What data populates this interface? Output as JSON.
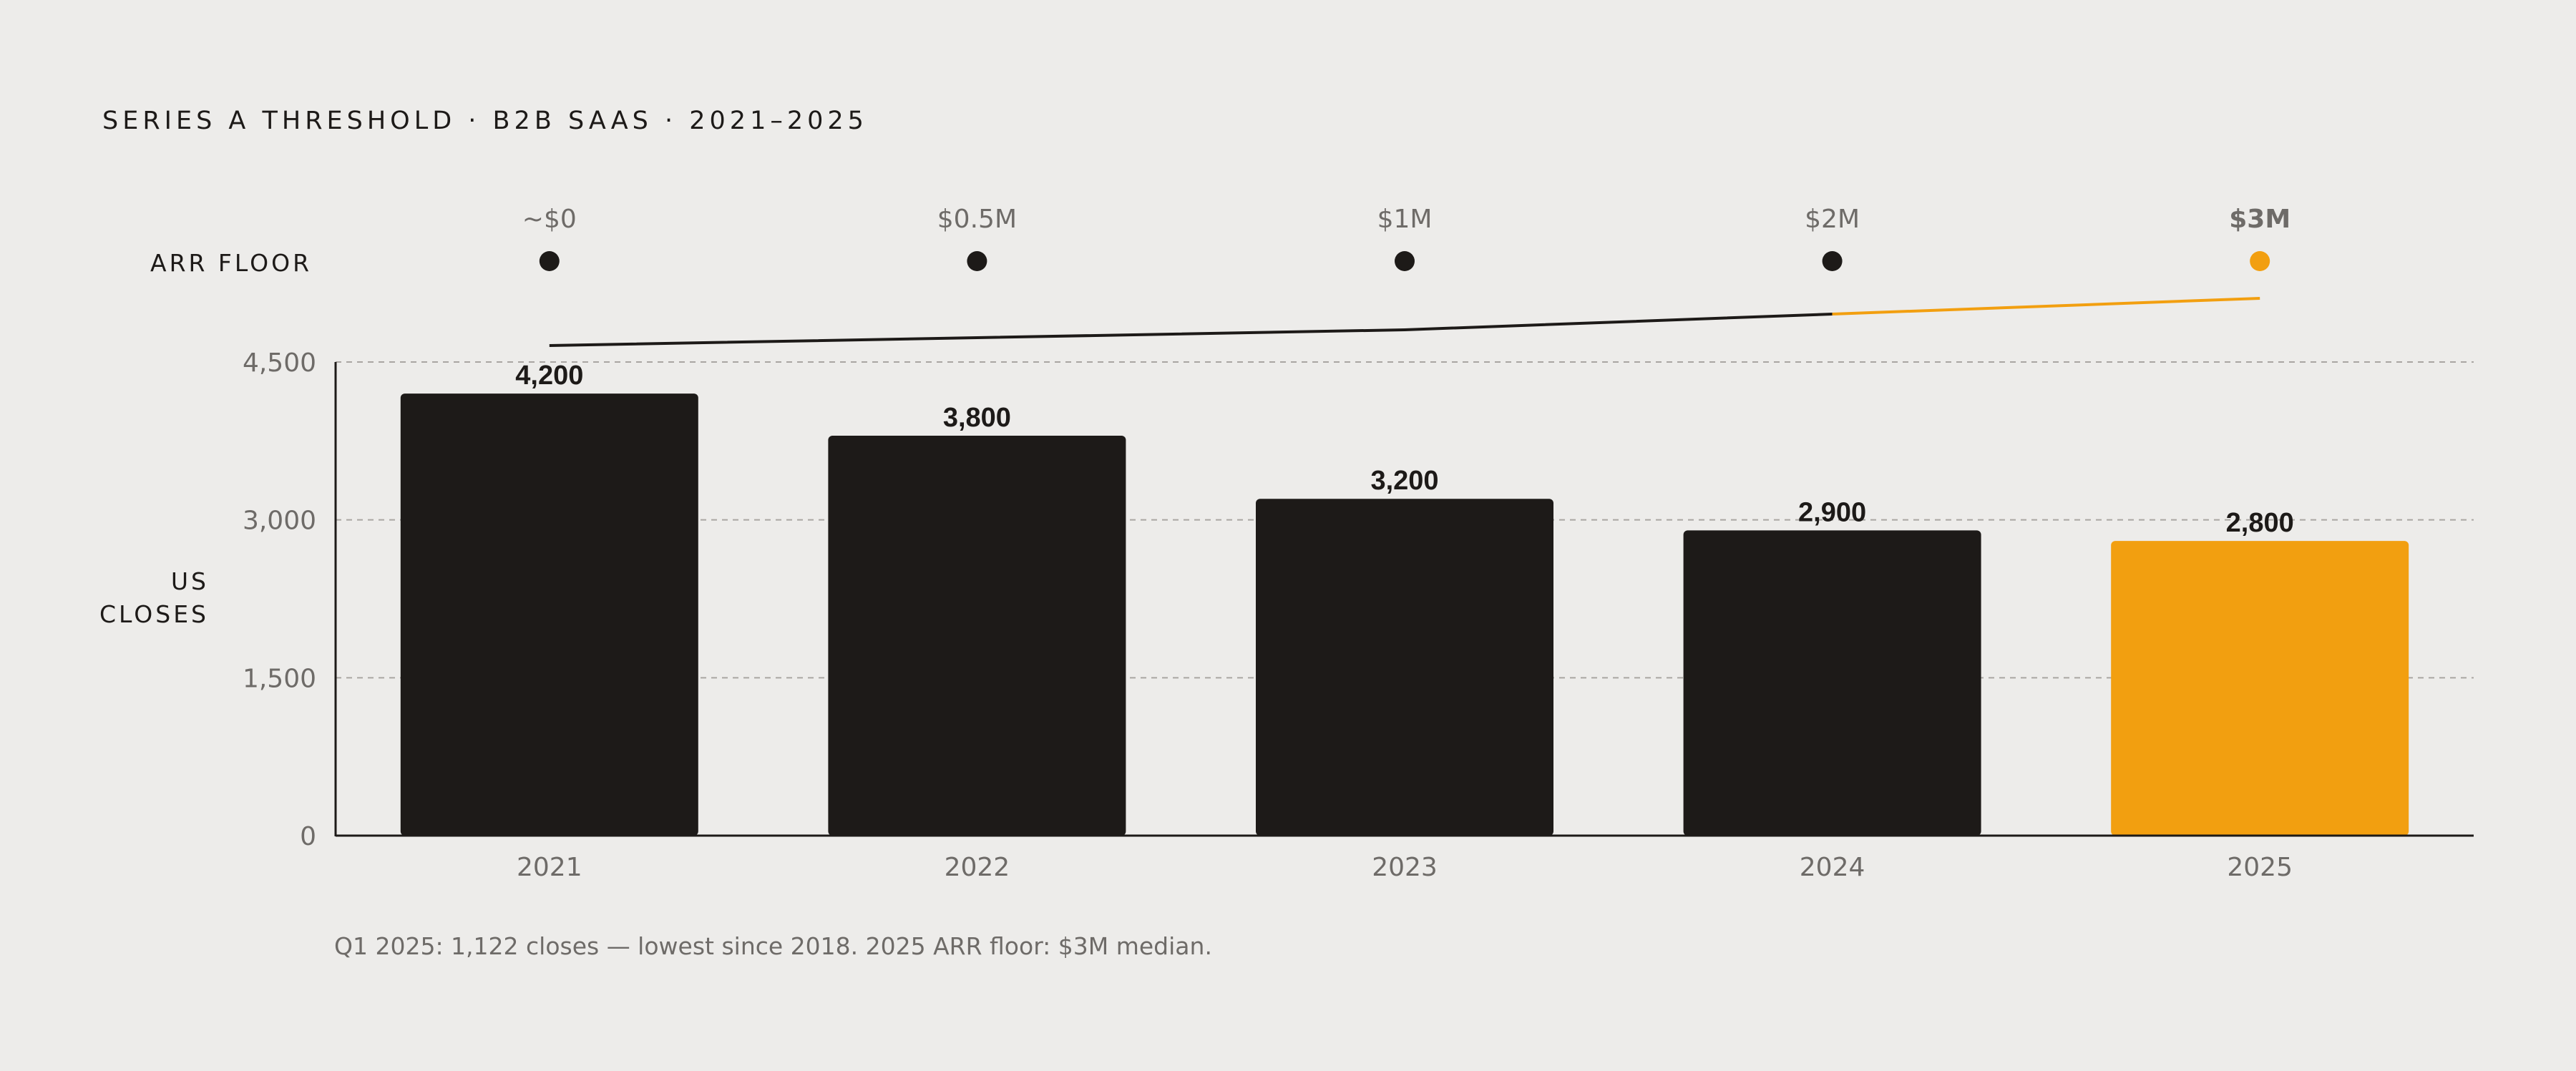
{
  "title": "SERIES A THRESHOLD · B2B SAAS · 2021–2025",
  "colors": {
    "background": "#EDECEA",
    "bar": "#1D1A18",
    "accent": "#F29F10",
    "muted_text": "#6E6B68"
  },
  "arr_floor": {
    "label": "ARR FLOOR",
    "milestones": [
      "~$0",
      "$0.5M",
      "$1M",
      "$2M",
      "$3M"
    ],
    "values_musd": [
      0,
      0.5,
      1,
      2,
      3
    ],
    "highlight_index": 4
  },
  "chart_data": {
    "type": "bar",
    "categories": [
      "2021",
      "2022",
      "2023",
      "2024",
      "2025"
    ],
    "values": [
      4200,
      3800,
      3200,
      2900,
      2800
    ],
    "value_labels": [
      "4,200",
      "3,800",
      "3,200",
      "2,900",
      "2,800"
    ],
    "title": "SERIES A THRESHOLD · B2B SAAS · 2021–2025",
    "ylabel": "US CLOSES",
    "ylabel_lines": [
      "US",
      "CLOSES"
    ],
    "xlabel": "",
    "ylim": [
      0,
      4500
    ],
    "yticks": [
      0,
      1500,
      3000,
      4500
    ],
    "ytick_labels": [
      "0",
      "1,500",
      "3,000",
      "4,500"
    ],
    "grid": "horizontal dashed",
    "highlight_index": 4
  },
  "footnote": "Q1 2025: 1,122 closes — lowest since 2018. 2025 ARR floor: $3M median."
}
